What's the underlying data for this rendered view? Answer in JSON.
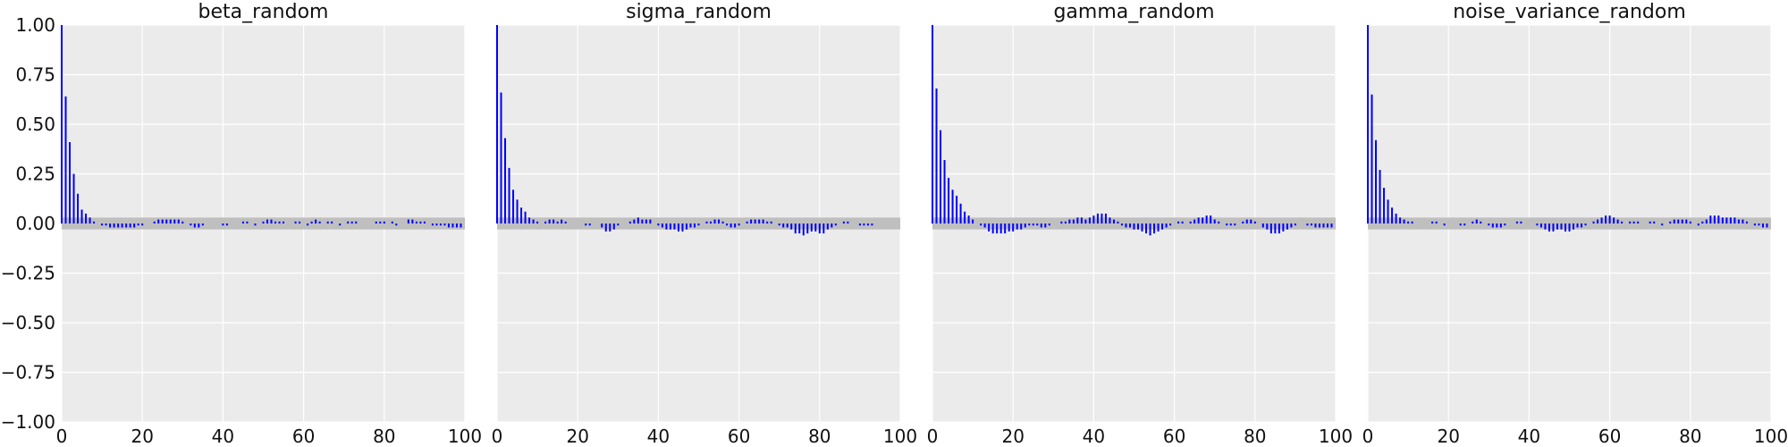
{
  "chart_data": [
    {
      "type": "bar",
      "title": "beta_random",
      "xlim": [
        0,
        100
      ],
      "ylim": [
        -1.0,
        1.0
      ],
      "grid": true,
      "x_ticks": [
        0,
        20,
        40,
        60,
        80,
        100
      ],
      "y_ticks": [
        1.0,
        0.75,
        0.5,
        0.25,
        0.0,
        -0.25,
        -0.5,
        -0.75,
        -1.0
      ],
      "y_tick_labels": [
        "1.00",
        "0.75",
        "0.50",
        "0.25",
        "0.00",
        "−0.25",
        "−0.50",
        "−0.75",
        "−1.00"
      ],
      "confidence_band": 0.03,
      "lags": "0-99",
      "values": [
        1.0,
        0.64,
        0.41,
        0.25,
        0.15,
        0.07,
        0.05,
        0.03,
        0.01,
        0.0,
        -0.01,
        -0.01,
        -0.02,
        -0.02,
        -0.02,
        -0.02,
        -0.02,
        -0.02,
        -0.02,
        -0.01,
        -0.01,
        0.0,
        0.0,
        0.01,
        0.02,
        0.02,
        0.02,
        0.02,
        0.02,
        0.02,
        0.01,
        0.0,
        -0.01,
        -0.02,
        -0.02,
        -0.01,
        0.0,
        0.0,
        0.0,
        0.0,
        -0.01,
        -0.01,
        0.0,
        0.0,
        0.0,
        0.01,
        0.01,
        0.0,
        -0.01,
        0.0,
        0.01,
        0.02,
        0.02,
        0.01,
        0.01,
        0.01,
        0.0,
        0.0,
        0.01,
        0.01,
        0.0,
        -0.01,
        0.01,
        0.02,
        0.01,
        0.0,
        0.01,
        0.01,
        0.0,
        -0.01,
        0.0,
        0.01,
        0.01,
        0.01,
        0.0,
        0.0,
        0.0,
        0.0,
        0.01,
        0.01,
        0.01,
        0.0,
        0.01,
        -0.01,
        0.0,
        0.0,
        0.02,
        0.02,
        0.01,
        0.01,
        0.01,
        0.0,
        -0.01,
        -0.01,
        -0.01,
        -0.01,
        -0.02,
        -0.02,
        -0.02,
        -0.02
      ]
    },
    {
      "type": "bar",
      "title": "sigma_random",
      "xlim": [
        0,
        100
      ],
      "ylim": [
        -1.0,
        1.0
      ],
      "grid": true,
      "x_ticks": [
        0,
        20,
        40,
        60,
        80,
        100
      ],
      "confidence_band": 0.03,
      "lags": "0-99",
      "values": [
        1.0,
        0.66,
        0.43,
        0.28,
        0.17,
        0.12,
        0.08,
        0.06,
        0.03,
        0.02,
        0.01,
        0.0,
        0.01,
        0.02,
        0.02,
        0.01,
        0.02,
        0.01,
        0.0,
        0.0,
        0.0,
        0.0,
        -0.01,
        -0.01,
        0.0,
        0.0,
        -0.02,
        -0.04,
        -0.04,
        -0.03,
        -0.01,
        0.0,
        0.0,
        0.01,
        0.02,
        0.03,
        0.02,
        0.02,
        0.02,
        0.0,
        -0.01,
        -0.02,
        -0.03,
        -0.03,
        -0.03,
        -0.04,
        -0.04,
        -0.03,
        -0.02,
        -0.02,
        -0.01,
        0.0,
        0.01,
        0.01,
        0.02,
        0.02,
        0.01,
        -0.01,
        -0.02,
        -0.02,
        -0.01,
        0.0,
        0.01,
        0.02,
        0.02,
        0.02,
        0.02,
        0.01,
        0.01,
        0.0,
        -0.01,
        -0.02,
        -0.02,
        -0.03,
        -0.05,
        -0.05,
        -0.06,
        -0.05,
        -0.04,
        -0.04,
        -0.05,
        -0.05,
        -0.03,
        -0.02,
        -0.01,
        0.0,
        0.01,
        0.01,
        0.0,
        0.0,
        -0.01,
        -0.01,
        -0.01,
        -0.01,
        0.0,
        0.0,
        0.0,
        0.0,
        0.0,
        0.0
      ]
    },
    {
      "type": "bar",
      "title": "gamma_random",
      "xlim": [
        0,
        100
      ],
      "ylim": [
        -1.0,
        1.0
      ],
      "grid": true,
      "x_ticks": [
        0,
        20,
        40,
        60,
        80,
        100
      ],
      "confidence_band": 0.03,
      "lags": "0-99",
      "values": [
        1.0,
        0.68,
        0.47,
        0.32,
        0.23,
        0.17,
        0.14,
        0.1,
        0.06,
        0.04,
        0.02,
        0.0,
        -0.01,
        -0.02,
        -0.04,
        -0.05,
        -0.05,
        -0.05,
        -0.05,
        -0.04,
        -0.04,
        -0.03,
        -0.03,
        -0.02,
        -0.01,
        -0.01,
        -0.01,
        -0.02,
        -0.02,
        -0.01,
        0.0,
        0.0,
        0.01,
        0.01,
        0.02,
        0.02,
        0.03,
        0.03,
        0.02,
        0.03,
        0.04,
        0.05,
        0.05,
        0.05,
        0.03,
        0.02,
        0.01,
        -0.01,
        -0.02,
        -0.02,
        -0.03,
        -0.03,
        -0.04,
        -0.05,
        -0.06,
        -0.05,
        -0.04,
        -0.03,
        -0.02,
        -0.01,
        0.0,
        0.01,
        0.01,
        0.0,
        0.01,
        0.02,
        0.03,
        0.03,
        0.04,
        0.04,
        0.02,
        0.01,
        0.0,
        -0.01,
        -0.01,
        -0.01,
        0.0,
        0.01,
        0.02,
        0.02,
        0.01,
        0.0,
        -0.02,
        -0.03,
        -0.05,
        -0.05,
        -0.05,
        -0.04,
        -0.03,
        -0.02,
        -0.01,
        0.0,
        0.0,
        -0.01,
        -0.01,
        -0.02,
        -0.02,
        -0.02,
        -0.02,
        -0.02
      ]
    },
    {
      "type": "bar",
      "title": "noise_variance_random",
      "xlim": [
        0,
        100
      ],
      "ylim": [
        -1.0,
        1.0
      ],
      "grid": true,
      "x_ticks": [
        0,
        20,
        40,
        60,
        80,
        100
      ],
      "confidence_band": 0.03,
      "lags": "0-99",
      "values": [
        1.0,
        0.65,
        0.42,
        0.27,
        0.18,
        0.12,
        0.08,
        0.05,
        0.03,
        0.02,
        0.01,
        0.01,
        0.0,
        0.0,
        0.0,
        0.0,
        0.01,
        0.01,
        0.0,
        -0.01,
        0.0,
        0.0,
        0.0,
        -0.01,
        -0.01,
        0.0,
        0.01,
        0.02,
        0.01,
        0.0,
        -0.01,
        -0.02,
        -0.02,
        -0.02,
        -0.01,
        0.0,
        0.0,
        0.01,
        0.01,
        0.0,
        0.0,
        0.0,
        -0.01,
        -0.02,
        -0.03,
        -0.04,
        -0.04,
        -0.03,
        -0.03,
        -0.04,
        -0.04,
        -0.03,
        -0.02,
        -0.02,
        -0.01,
        0.0,
        0.01,
        0.02,
        0.03,
        0.04,
        0.04,
        0.03,
        0.02,
        0.01,
        0.0,
        0.01,
        0.01,
        0.01,
        0.0,
        0.0,
        0.01,
        0.01,
        0.0,
        -0.01,
        0.0,
        0.01,
        0.02,
        0.02,
        0.02,
        0.02,
        0.01,
        0.0,
        -0.01,
        0.01,
        0.02,
        0.04,
        0.04,
        0.04,
        0.03,
        0.03,
        0.03,
        0.03,
        0.02,
        0.02,
        0.01,
        0.0,
        -0.01,
        -0.01,
        -0.02,
        -0.02
      ]
    }
  ]
}
